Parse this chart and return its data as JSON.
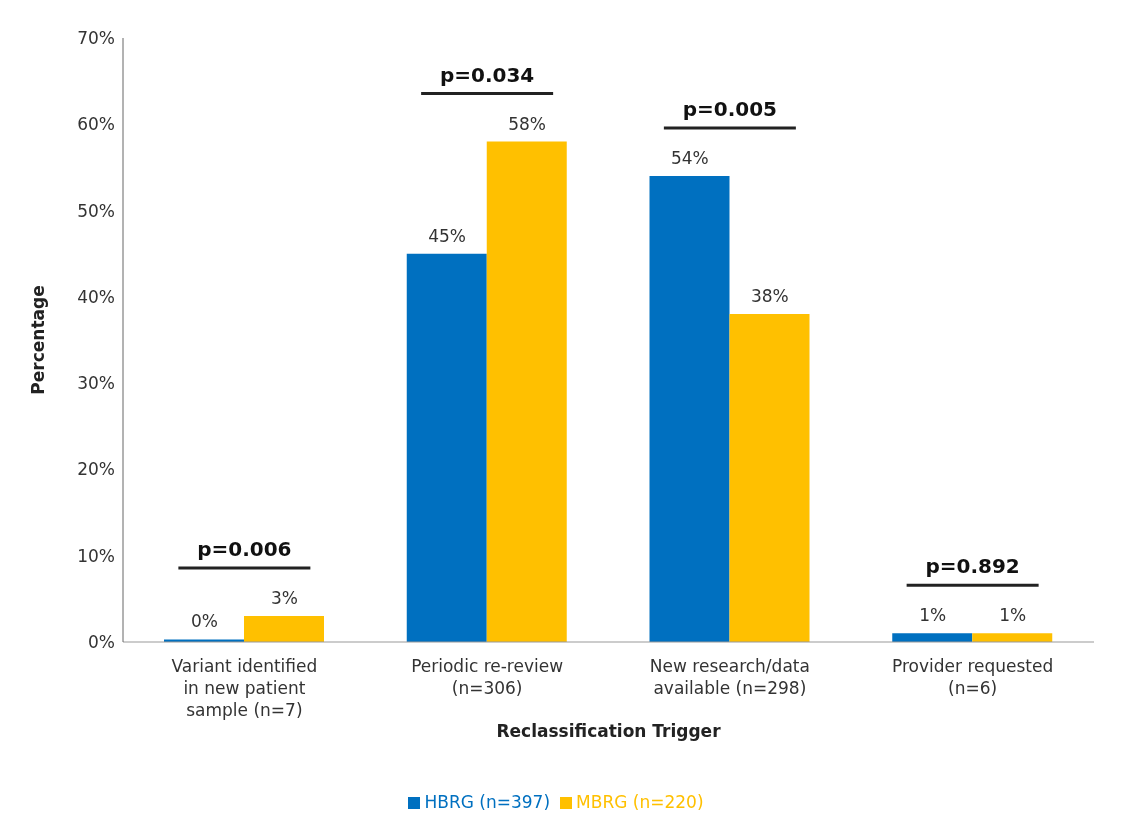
{
  "chart_data": {
    "type": "bar",
    "xlabel": "Reclassification  Trigger",
    "ylabel": "Percentage",
    "categories": [
      "Variant identified in new patient sample (n=7)",
      "Periodic re-review (n=306)",
      "New research/data available (n=298)",
      "Provider requested (n=6)"
    ],
    "series": [
      {
        "name": "HBRG (n=397)",
        "color": "#0070c0",
        "values": [
          0.3,
          45,
          54,
          1
        ],
        "value_labels": [
          "0%",
          "45%",
          "54%",
          "1%"
        ]
      },
      {
        "name": "MBRG (n=220)",
        "color": "#ffc000",
        "values": [
          3,
          58,
          38,
          1
        ],
        "value_labels": [
          "3%",
          "58%",
          "38%",
          "1%"
        ]
      }
    ],
    "ylim": [
      0,
      70
    ],
    "yticks": [
      {
        "value": 0,
        "label": "0%"
      },
      {
        "value": 10,
        "label": "10%"
      },
      {
        "value": 20,
        "label": "20%"
      },
      {
        "value": 30,
        "label": "30%"
      },
      {
        "value": 40,
        "label": "40%"
      },
      {
        "value": 50,
        "label": "50%"
      },
      {
        "value": 60,
        "label": "60%"
      },
      {
        "value": 70,
        "label": "70%"
      }
    ],
    "annotations": [
      "p=0.006",
      "p=0.034",
      "p=0.005",
      "p=0.892"
    ],
    "grid": false,
    "legend": "bottom"
  }
}
